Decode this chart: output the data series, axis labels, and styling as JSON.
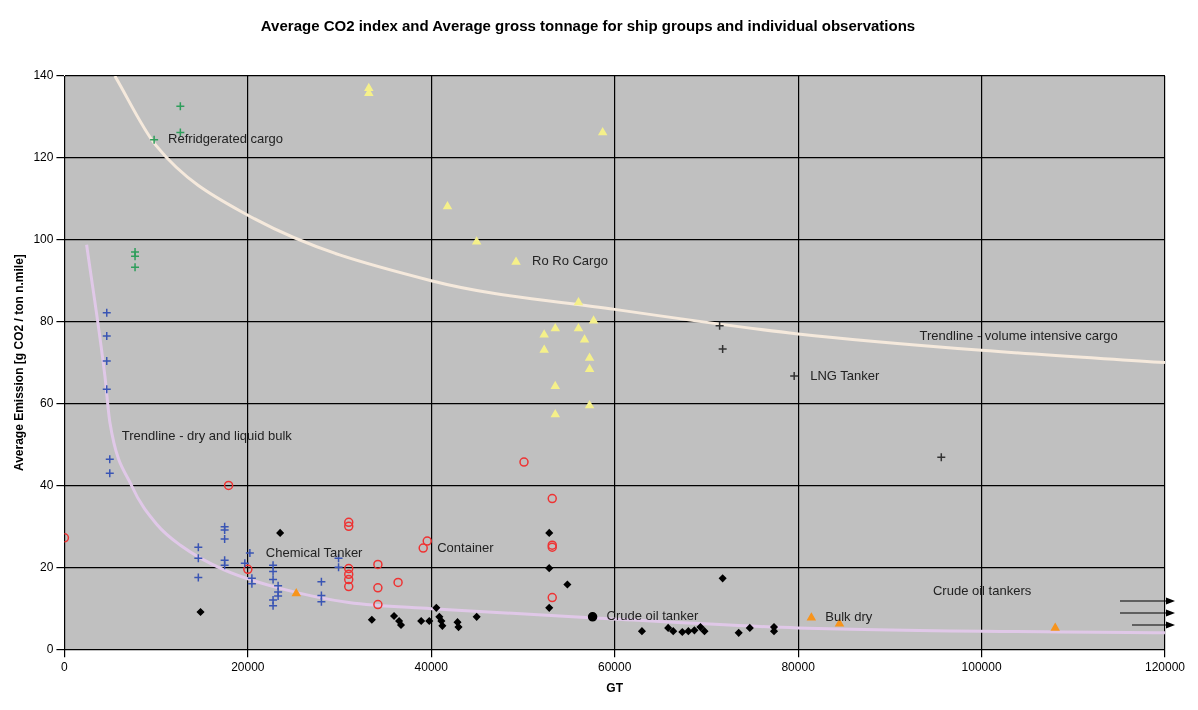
{
  "chart_data": {
    "type": "scatter",
    "title": "Average CO2 index and Average gross tonnage for ship groups and individual observations",
    "xlabel": "GT",
    "ylabel": "Average Emission [g CO2 / ton n.mile]",
    "xlim": [
      0,
      120000
    ],
    "ylim": [
      0,
      140
    ],
    "xticks": [
      0,
      20000,
      40000,
      60000,
      80000,
      100000,
      120000
    ],
    "yticks": [
      0,
      20,
      40,
      60,
      80,
      100,
      120,
      140
    ],
    "grid": true,
    "legend": false,
    "series": [
      {
        "marker": "cross",
        "color": "#2e9e5b",
        "x": [
          12640,
          12640,
          7700,
          7700,
          7700,
          9780
        ],
        "values": [
          132.6,
          126.2,
          97,
          96,
          93.3,
          124.4
        ]
      },
      {
        "marker": "cross",
        "color": "#3a55b4",
        "x": [
          4615,
          4615,
          4615,
          4615,
          4945,
          4945,
          14600,
          14600,
          14600,
          17470,
          17470,
          17470,
          17470,
          17470,
          20220,
          19670,
          20440,
          20440,
          22750,
          22750,
          22750,
          23300,
          23300,
          23300,
          22750,
          22750,
          28020,
          28020,
          28020,
          29890,
          29890
        ],
        "values": [
          82.2,
          76.5,
          70.4,
          63.5,
          46.4,
          43,
          24.9,
          22.2,
          17.5,
          29.9,
          29.1,
          26.9,
          21.7,
          20.5,
          23.5,
          21,
          17.3,
          16,
          20.5,
          19,
          17,
          15.5,
          14,
          13,
          12,
          10.6,
          16.5,
          13.1,
          11.6,
          22.2,
          20
        ]
      },
      {
        "marker": "circle",
        "color": "#ee3333",
        "x": [
          0,
          17900,
          20000,
          31000,
          31000,
          31000,
          31000,
          31000,
          31000,
          34180,
          34180,
          34180,
          36380,
          39120,
          39560,
          50110,
          53190,
          53190,
          53190,
          53190
        ],
        "values": [
          27.2,
          40,
          19.5,
          31,
          30,
          19.7,
          18.3,
          17,
          15.3,
          20.7,
          15,
          10.9,
          16.3,
          24.7,
          26.4,
          45.7,
          36.8,
          25.4,
          24.9,
          12.6
        ]
      },
      {
        "marker": "diamond",
        "color": "#000000",
        "x": [
          14840,
          23520,
          33520,
          35940,
          36490,
          36700,
          38900,
          39780,
          40550,
          40880,
          41100,
          41210,
          42860,
          42970,
          44950,
          52860,
          52860,
          54840,
          52860,
          62970,
          65830,
          66380,
          67370,
          68030,
          68690,
          69350,
          69790,
          71770,
          73520,
          74730,
          77370,
          77370
        ],
        "values": [
          9.1,
          28.4,
          7.2,
          8.1,
          6.9,
          5.9,
          6.9,
          6.9,
          10.1,
          7.9,
          6.9,
          5.7,
          6.6,
          5.4,
          7.9,
          28.4,
          19.8,
          15.8,
          10.1,
          4.4,
          5.2,
          4.4,
          4.2,
          4.4,
          4.6,
          5.4,
          4.4,
          17.3,
          4,
          5.2,
          5.4,
          4.4
        ]
      },
      {
        "marker": "circle",
        "color": "#000000",
        "x": [
          57590
        ],
        "values": [
          7.9
        ]
      },
      {
        "marker": "triangle",
        "color": "#f5f08a",
        "x": [
          33190,
          33190,
          58690,
          41770,
          44950,
          49240,
          56050,
          57700,
          52310,
          53520,
          56050,
          56710,
          52310,
          57260,
          57260,
          53520,
          57260,
          53520
        ],
        "values": [
          135.8,
          137,
          126.2,
          108.1,
          99.5,
          94.6,
          84.7,
          80.2,
          76.8,
          78.3,
          78.3,
          75.6,
          73.1,
          71.1,
          68.4,
          64.2,
          59.5,
          57.3
        ]
      },
      {
        "marker": "cross",
        "color": "#333333",
        "x": [
          71440,
          71770,
          79570,
          95610
        ],
        "values": [
          79,
          73.3,
          66.7,
          46.9
        ]
      },
      {
        "marker": "triangle",
        "color": "#f7941d",
        "x": [
          25280,
          81440,
          84510,
          108030
        ],
        "values": [
          13.6,
          7.7,
          6.2,
          5.2
        ]
      },
      {
        "type": "line",
        "color": "#f5e9dc",
        "x": [
          5500,
          10000,
          20000,
          40000,
          60000,
          80000,
          100000,
          120000
        ],
        "values": [
          140,
          123,
          106,
          90,
          83,
          77,
          73,
          70
        ]
      },
      {
        "type": "line",
        "color": "#e0c8e8",
        "x": [
          2420,
          4400,
          4950,
          7360,
          10110,
          12640,
          17470,
          23630,
          31000,
          40000,
          57370,
          80000,
          120000
        ],
        "values": [
          98.8,
          67,
          55.5,
          39.8,
          30.4,
          25.4,
          19.3,
          14.8,
          11.4,
          9.9,
          7.7,
          5.2,
          4
        ]
      }
    ],
    "annotations": [
      {
        "text": "Refridgerated cargo",
        "x": 9780,
        "y": 124.4
      },
      {
        "text": "Ro Ro Cargo",
        "x": 49240,
        "y": 94.6
      },
      {
        "text": "Trendline - volume intensive cargo",
        "x": 100000,
        "y": 73
      },
      {
        "text": "LNG Tanker",
        "x": 79570,
        "y": 66.7
      },
      {
        "text": "Trendline - dry and liquid bulk",
        "x": 4950,
        "y": 55.5
      },
      {
        "text": "Chemical Tanker",
        "x": 20220,
        "y": 23.5
      },
      {
        "text": "Container",
        "x": 39120,
        "y": 24.7
      },
      {
        "text": "Crude oil tanker",
        "x": 57590,
        "y": 7.9
      },
      {
        "text": "Bulk dry",
        "x": 81440,
        "y": 7.7
      },
      "Crude oil tankers"
    ]
  }
}
